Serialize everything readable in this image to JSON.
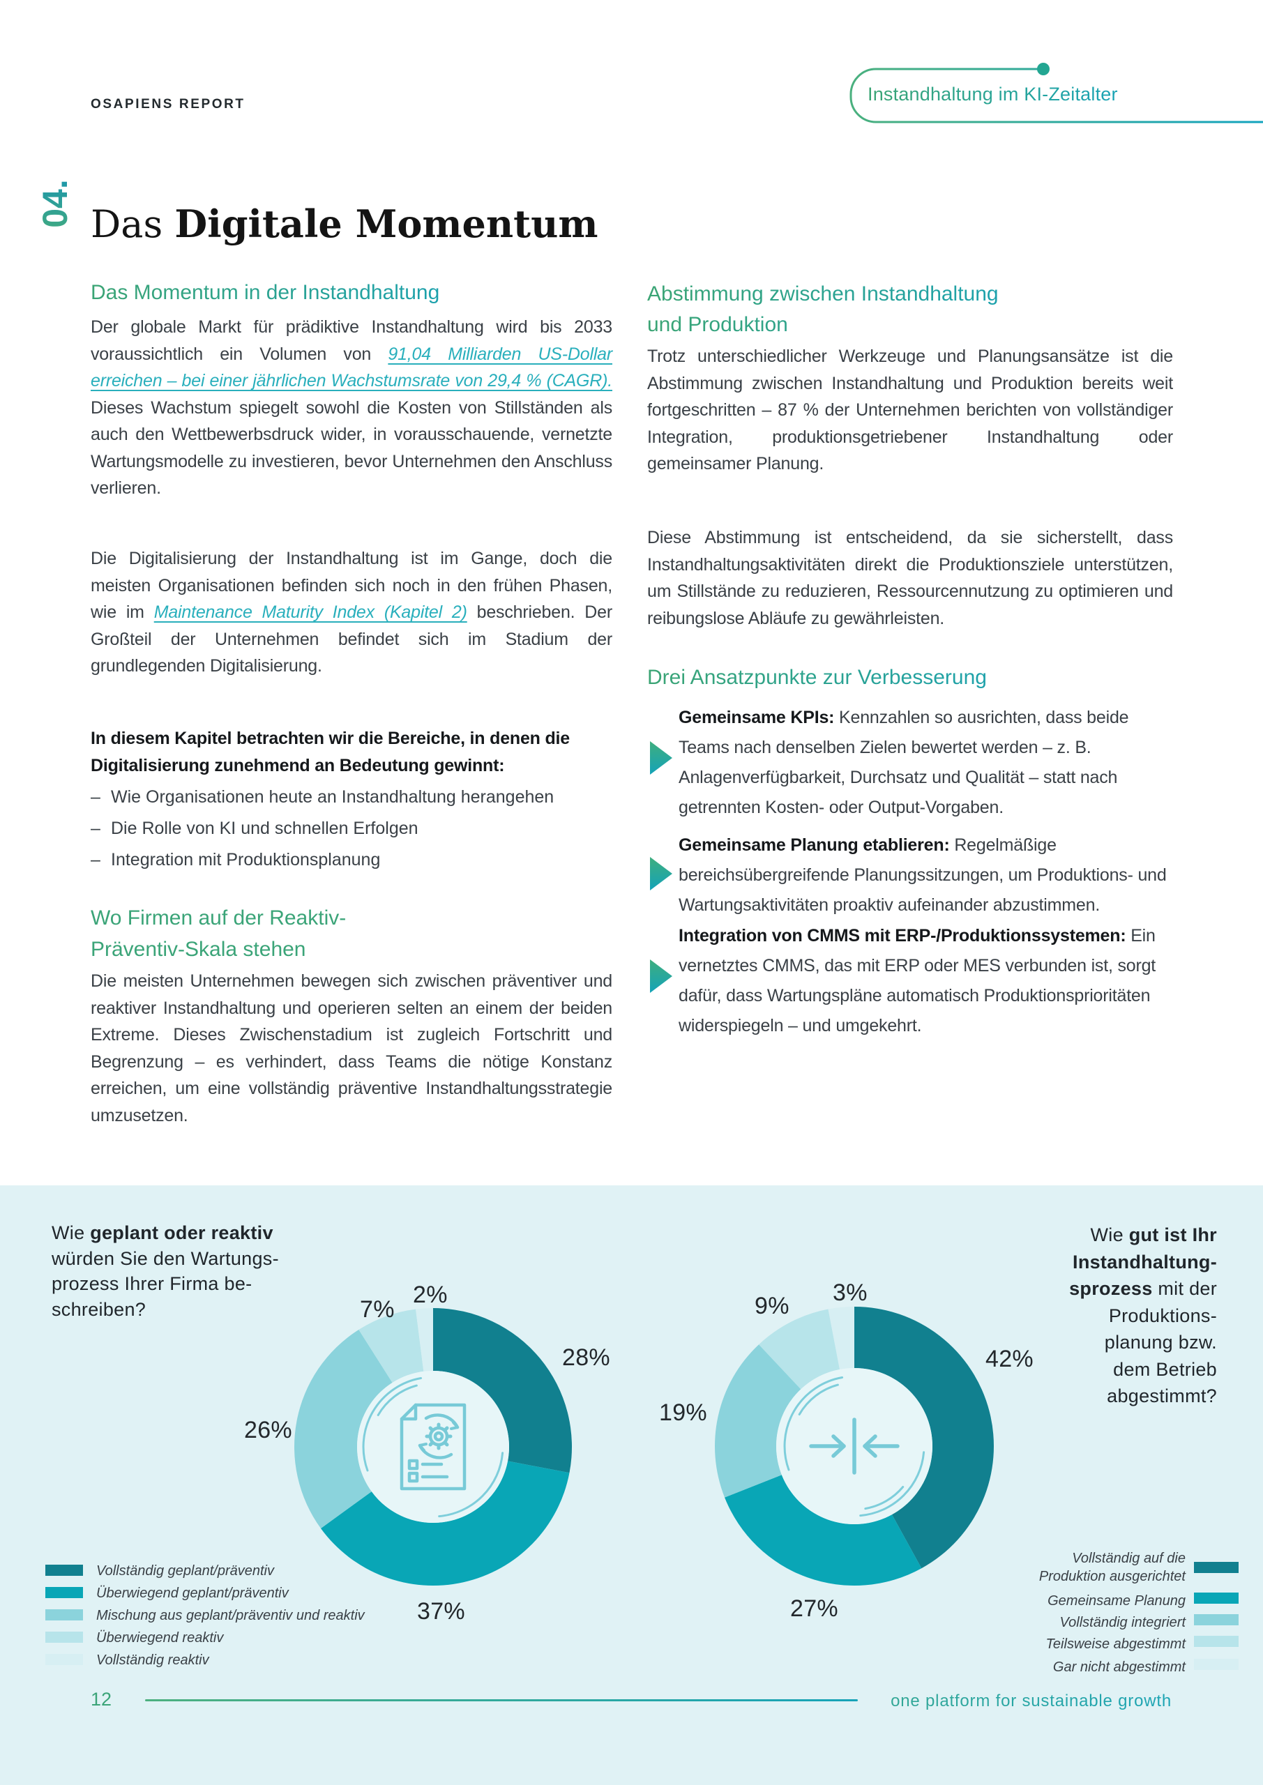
{
  "page": {
    "report_label": "OSAPIENS REPORT",
    "badge": "Instandhaltung im KI-Zeitalter",
    "chapter_number": "04.",
    "title_regular": "Das ",
    "title_bold": "Digitale Momentum",
    "page_number": "12",
    "footer_tagline": "one platform for sustainable growth"
  },
  "accent_colors": {
    "green": "#3ba478",
    "teal": "#12a0be",
    "link": "#29afbc",
    "panel_bg": "#e0f2f5"
  },
  "left_column": {
    "section1": {
      "heading": "Das Momentum in der Instandhaltung",
      "para_before_link": "Der globale Markt für prädiktive Instandhaltung wird bis 2033 voraussichtlich ein Volumen von ",
      "link": "91,04 Milliarden US-Dollar erreichen – bei einer jährlichen Wachstumsrate von 29,4 % (CAGR).",
      "para_after_link": " Dieses Wachstum spiegelt sowohl die Kosten von Stillständen als auch den Wettbewerbsdruck wider, in vorausschauende, vernetzte Wartungsmodelle zu investieren, bevor Unternehmen den Anschluss verlieren."
    },
    "section2": {
      "para_before_link": "Die Digitalisierung der Instandhaltung ist im Gange, doch die meisten Organisationen befinden sich noch in den frühen Phasen, wie im ",
      "link": "Maintenance Maturity Index (Kapitel 2)",
      "para_after_link": " beschrieben. Der Großteil der Unternehmen befindet sich im Stadium der grundlegenden Digitalisierung."
    },
    "chapter_intro": {
      "bold_lead": "In diesem Kapitel betrachten wir die Bereiche, in denen die Digitalisierung zunehmend an Bedeutung gewinnt:",
      "dash": "–",
      "bullets": [
        "Wie Organisationen heute an Instandhaltung herangehen",
        "Die Rolle von KI und schnellen Erfolgen",
        "Integration mit Produktionsplanung"
      ]
    },
    "section3": {
      "heading_line1": "Wo Firmen auf der Reaktiv-",
      "heading_line2": "Präventiv-Skala stehen",
      "para": "Die meisten Unternehmen bewegen sich zwischen präventiver und reaktiver Instandhaltung und operieren selten an einem der beiden Extreme. Dieses Zwischenstadium ist zugleich Fortschritt und Begrenzung – es verhindert, dass Teams die nötige Konstanz erreichen, um eine vollständig präventive Instandhaltungsstrategie umzusetzen."
    }
  },
  "right_column": {
    "section1": {
      "heading_line1": "Abstimmung zwischen Instandhaltung",
      "heading_line2": "und Produktion",
      "para1": "Trotz unterschiedlicher Werkzeuge und Planungsansätze ist die Abstimmung zwischen Instandhaltung und Produktion bereits weit fortgeschritten – 87 % der Unternehmen berichten von vollständiger Integration, produktionsgetriebener Instandhaltung oder gemeinsamer Planung.",
      "para2": "Diese Abstimmung ist entscheidend, da sie sicherstellt, dass Instandhaltungsaktivitäten direkt die Produktionsziele unterstützen, um Stillstände zu reduzieren, Ressourcennutzung zu optimieren und reibungslose Abläufe zu gewährleisten."
    },
    "section2": {
      "heading": "Drei Ansatzpunkte zur Verbesserung",
      "items": [
        {
          "bold": "Gemeinsame KPIs:",
          "text": " Kennzahlen so ausrichten, dass beide Teams nach denselben Zielen bewertet werden – z. B. Anlagenverfügbarkeit, Durchsatz und Qualität – statt nach getrennten Kosten- oder Output-Vorgaben."
        },
        {
          "bold": "Gemeinsame Planung etablieren:",
          "text": " Regelmäßige bereichsübergreifende Planungssitzungen, um Produktions- und Wartungsaktivitäten proaktiv aufeinander abzustimmen."
        },
        {
          "bold": "Integration von CMMS mit ERP-/Produktionssystemen:",
          "text": " Ein vernetztes CMMS, das mit ERP oder MES verbunden ist, sorgt dafür, dass Wartungspläne automatisch Produktionsprioritäten widerspiegeln – und umgekehrt."
        }
      ]
    }
  },
  "chart_data": [
    {
      "type": "pie",
      "variant": "donut",
      "title": "Wie geplant oder reaktiv würden Sie den Wartungsprozess Ihrer Firma beschreiben?",
      "title_lines": {
        "l1_pre": "Wie ",
        "l1_bold": "geplant oder reaktiv",
        "l2": "würden Sie den Wartungs-",
        "l3": "prozess Ihrer Firma be-",
        "l4": "schreiben?"
      },
      "categories": [
        "Vollständig geplant/präventiv",
        "Überwiegend geplant/präventiv",
        "Mischung aus geplant/präventiv und reaktiv",
        "Überwiegend reaktiv",
        "Vollständig reaktiv"
      ],
      "values": [
        28,
        37,
        26,
        7,
        2
      ],
      "labels": [
        "28%",
        "37%",
        "26%",
        "7%",
        "2%"
      ],
      "colors": [
        "#11808f",
        "#09a6b6",
        "#8bd3dc",
        "#b7e4ea",
        "#d7eff3"
      ],
      "start_angle_deg": 0,
      "direction": "clockwise",
      "legend_position": "bottom-left",
      "center_icon": "maintenance-checklist-icon"
    },
    {
      "type": "pie",
      "variant": "donut",
      "title": "Wie gut ist Ihr Instandhaltungsprozess mit der Produktionsplanung bzw. dem Betrieb abgestimmt?",
      "title_lines": {
        "l1_pre": "Wie ",
        "l1_bold": "gut ist Ihr",
        "l2_bold": "Instandhaltung-",
        "l3_bold": "sprozess",
        "l3_post": " mit der",
        "l4": "Produktions-",
        "l5": "planung bzw.",
        "l6": "dem Betrieb",
        "l7": "abgestimmt?"
      },
      "categories": [
        "Vollständig auf die Produktion ausgerichtet",
        "Gemeinsame Planung",
        "Vollständig integriert",
        "Teilsweise abgestimmt",
        "Gar nicht abgestimmt"
      ],
      "values": [
        42,
        27,
        19,
        9,
        3
      ],
      "labels": [
        "42%",
        "27%",
        "19%",
        "9%",
        "3%"
      ],
      "colors": [
        "#11808f",
        "#09a6b6",
        "#8bd3dc",
        "#b7e4ea",
        "#d7eff3"
      ],
      "start_angle_deg": 0,
      "direction": "clockwise",
      "legend_position": "bottom-right",
      "center_icon": "align-converge-icon"
    }
  ]
}
